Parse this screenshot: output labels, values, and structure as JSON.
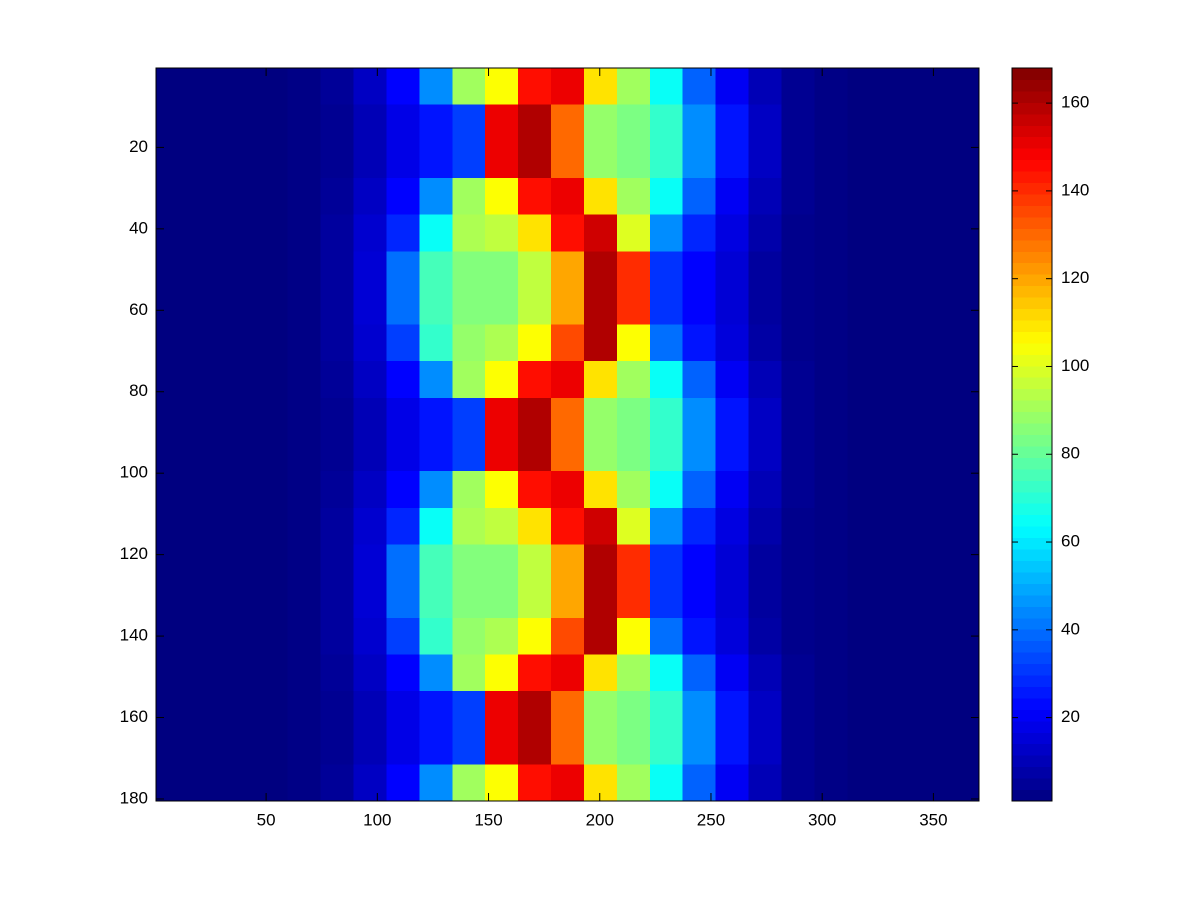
{
  "chart_data": {
    "type": "heatmap",
    "colormap": "jet",
    "x": [
      7.9,
      22.7,
      37.5,
      52.3,
      67.1,
      81.9,
      96.7,
      111.5,
      126.3,
      141.1,
      155.9,
      170.7,
      185.5,
      200.3,
      215.1,
      229.9,
      244.7,
      259.5,
      274.3,
      289.1,
      303.9,
      318.7,
      333.5,
      348.3,
      363.1
    ],
    "y": [
      5,
      14,
      23,
      32,
      41,
      50,
      59,
      68,
      77,
      86,
      95,
      104,
      113,
      122,
      131,
      140,
      149,
      158,
      167,
      176
    ],
    "values": [
      [
        1,
        1,
        1,
        1,
        2,
        5,
        12,
        22,
        45,
        90,
        105,
        145,
        150,
        110,
        90,
        65,
        38,
        20,
        10,
        4,
        2,
        1,
        1,
        1,
        1
      ],
      [
        1,
        1,
        1,
        1,
        2,
        4,
        10,
        18,
        25,
        32,
        150,
        160,
        130,
        88,
        84,
        72,
        45,
        25,
        12,
        4,
        2,
        1,
        1,
        1,
        1
      ],
      [
        1,
        1,
        1,
        1,
        2,
        4,
        10,
        18,
        25,
        32,
        150,
        160,
        130,
        88,
        84,
        72,
        45,
        25,
        12,
        4,
        2,
        1,
        1,
        1,
        1
      ],
      [
        1,
        1,
        1,
        1,
        2,
        5,
        12,
        22,
        45,
        90,
        105,
        145,
        150,
        110,
        90,
        65,
        38,
        20,
        10,
        4,
        2,
        1,
        1,
        1,
        1
      ],
      [
        1,
        1,
        1,
        1,
        2,
        6,
        14,
        28,
        65,
        92,
        95,
        110,
        145,
        155,
        100,
        45,
        28,
        17,
        8,
        3,
        2,
        1,
        1,
        1,
        1
      ],
      [
        1,
        1,
        1,
        1,
        2,
        6,
        15,
        40,
        75,
        85,
        85,
        95,
        120,
        160,
        140,
        30,
        22,
        15,
        6,
        3,
        2,
        1,
        1,
        1,
        1
      ],
      [
        1,
        1,
        1,
        1,
        2,
        6,
        15,
        40,
        75,
        85,
        85,
        95,
        120,
        160,
        140,
        30,
        22,
        15,
        6,
        3,
        2,
        1,
        1,
        1,
        1
      ],
      [
        1,
        1,
        1,
        1,
        2,
        6,
        14,
        32,
        72,
        88,
        92,
        105,
        135,
        160,
        105,
        40,
        25,
        16,
        7,
        3,
        2,
        1,
        1,
        1,
        1
      ],
      [
        1,
        1,
        1,
        1,
        2,
        5,
        12,
        22,
        45,
        90,
        105,
        145,
        150,
        110,
        90,
        65,
        38,
        20,
        10,
        4,
        2,
        1,
        1,
        1,
        1
      ],
      [
        1,
        1,
        1,
        1,
        2,
        4,
        10,
        18,
        25,
        32,
        150,
        160,
        130,
        88,
        84,
        72,
        45,
        25,
        12,
        4,
        2,
        1,
        1,
        1,
        1
      ],
      [
        1,
        1,
        1,
        1,
        2,
        4,
        10,
        18,
        25,
        32,
        150,
        160,
        130,
        88,
        84,
        72,
        45,
        25,
        12,
        4,
        2,
        1,
        1,
        1,
        1
      ],
      [
        1,
        1,
        1,
        1,
        2,
        5,
        12,
        22,
        45,
        90,
        105,
        145,
        150,
        110,
        90,
        65,
        38,
        20,
        10,
        4,
        2,
        1,
        1,
        1,
        1
      ],
      [
        1,
        1,
        1,
        1,
        2,
        6,
        14,
        28,
        65,
        92,
        95,
        110,
        145,
        155,
        100,
        45,
        28,
        17,
        8,
        3,
        2,
        1,
        1,
        1,
        1
      ],
      [
        1,
        1,
        1,
        1,
        2,
        6,
        15,
        40,
        75,
        85,
        85,
        95,
        120,
        160,
        140,
        30,
        22,
        15,
        6,
        3,
        2,
        1,
        1,
        1,
        1
      ],
      [
        1,
        1,
        1,
        1,
        2,
        6,
        15,
        40,
        75,
        85,
        85,
        95,
        120,
        160,
        140,
        30,
        22,
        15,
        6,
        3,
        2,
        1,
        1,
        1,
        1
      ],
      [
        1,
        1,
        1,
        1,
        2,
        6,
        14,
        32,
        72,
        88,
        92,
        105,
        135,
        160,
        105,
        40,
        25,
        16,
        7,
        3,
        2,
        1,
        1,
        1,
        1
      ],
      [
        1,
        1,
        1,
        1,
        2,
        5,
        12,
        22,
        45,
        90,
        105,
        145,
        150,
        110,
        90,
        65,
        38,
        20,
        10,
        4,
        2,
        1,
        1,
        1,
        1
      ],
      [
        1,
        1,
        1,
        1,
        2,
        4,
        10,
        18,
        25,
        32,
        150,
        160,
        130,
        88,
        84,
        72,
        45,
        25,
        12,
        4,
        2,
        1,
        1,
        1,
        1
      ],
      [
        1,
        1,
        1,
        1,
        2,
        4,
        10,
        18,
        25,
        32,
        150,
        160,
        130,
        88,
        84,
        72,
        45,
        25,
        12,
        4,
        2,
        1,
        1,
        1,
        1
      ],
      [
        1,
        1,
        1,
        1,
        2,
        5,
        12,
        22,
        45,
        90,
        105,
        145,
        150,
        110,
        90,
        65,
        38,
        20,
        10,
        4,
        2,
        1,
        1,
        1,
        1
      ]
    ],
    "xlim": [
      0.5,
      370.5
    ],
    "xticks": [
      50,
      100,
      150,
      200,
      250,
      300,
      350
    ],
    "ylim": [
      0.5,
      180.5
    ],
    "yticks": [
      20,
      40,
      60,
      80,
      100,
      120,
      140,
      160,
      180
    ],
    "y_reversed": true,
    "clim": [
      1,
      168
    ],
    "colorbar_ticks": [
      20,
      40,
      60,
      80,
      100,
      120,
      140,
      160
    ]
  }
}
